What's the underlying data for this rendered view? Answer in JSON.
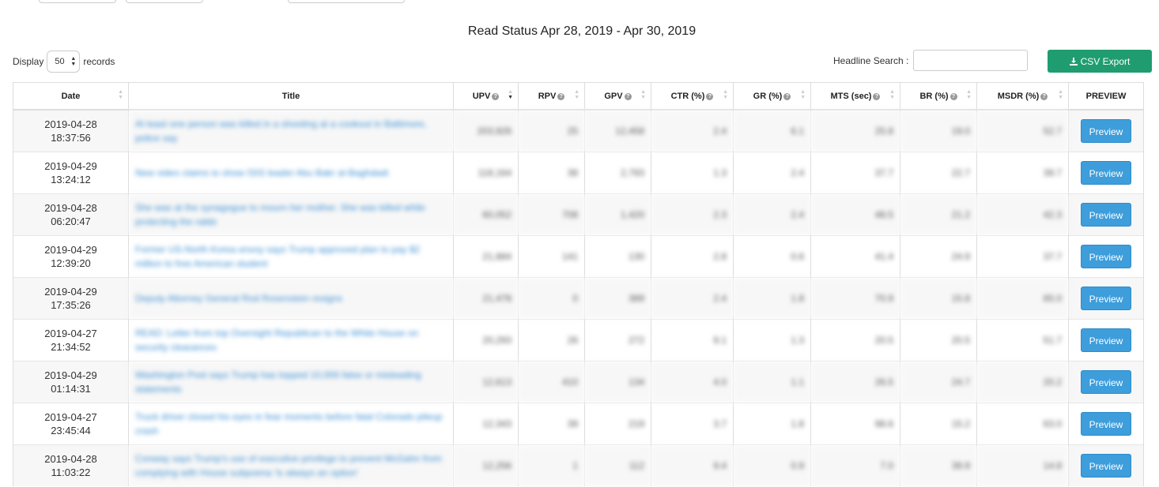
{
  "page_title": "Read Status Apr 28, 2019 - Apr 30, 2019",
  "display": {
    "prefix": "Display",
    "value": "50",
    "suffix": "records"
  },
  "search": {
    "label": "Headline Search :",
    "value": "",
    "placeholder": ""
  },
  "export_label": "CSV Export",
  "columns": [
    "Date",
    "Title",
    "UPV",
    "RPV",
    "GPV",
    "CTR (%)",
    "GR (%)",
    "MTS (sec)",
    "BR (%)",
    "MSDR (%)",
    "PREVIEW"
  ],
  "rows": [
    {
      "date": "2019-04-28",
      "time": "18:37:56",
      "title": "At least one person was killed in a shooting at a cookout in Baltimore, police say",
      "upv": "203,926",
      "rpv": "25",
      "gpv": "12,458",
      "ctr": "2.4",
      "gr": "6.1",
      "mts": "25.8",
      "br": "19.0",
      "msdr": "52.7",
      "preview": "Preview"
    },
    {
      "date": "2019-04-29",
      "time": "13:24:12",
      "title": "New video claims to show ISIS leader Abu Bakr al-Baghdadi",
      "upv": "118,164",
      "rpv": "38",
      "gpv": "2,793",
      "ctr": "1.3",
      "gr": "2.4",
      "mts": "37.7",
      "br": "22.7",
      "msdr": "39.7",
      "preview": "Preview"
    },
    {
      "date": "2019-04-28",
      "time": "06:20:47",
      "title": "She was at the synagogue to mourn her mother. She was killed while protecting the rabbi",
      "upv": "60,052",
      "rpv": "708",
      "gpv": "1,420",
      "ctr": "2.3",
      "gr": "2.4",
      "mts": "48.5",
      "br": "21.2",
      "msdr": "42.3",
      "preview": "Preview"
    },
    {
      "date": "2019-04-29",
      "time": "12:39:20",
      "title": "Former US-North Korea envoy says Trump approved plan to pay $2 million to free American student",
      "upv": "21,884",
      "rpv": "141",
      "gpv": "130",
      "ctr": "2.8",
      "gr": "0.6",
      "mts": "41.4",
      "br": "24.9",
      "msdr": "37.7",
      "preview": "Preview"
    },
    {
      "date": "2019-04-29",
      "time": "17:35:26",
      "title": "Deputy Attorney General Rod Rosenstein resigns",
      "upv": "21,478",
      "rpv": "0",
      "gpv": "389",
      "ctr": "2.4",
      "gr": "1.8",
      "mts": "70.9",
      "br": "15.8",
      "msdr": "65.0",
      "preview": "Preview"
    },
    {
      "date": "2019-04-27",
      "time": "21:34:52",
      "title": "READ: Letter from top Oversight Republican to the White House on security clearances",
      "upv": "20,293",
      "rpv": "26",
      "gpv": "272",
      "ctr": "9.1",
      "gr": "1.3",
      "mts": "20.5",
      "br": "20.5",
      "msdr": "51.7",
      "preview": "Preview"
    },
    {
      "date": "2019-04-29",
      "time": "01:14:31",
      "title": "Washington Post says Trump has topped 10,000 false or misleading statements",
      "upv": "12,613",
      "rpv": "410",
      "gpv": "134",
      "ctr": "4.0",
      "gr": "1.1",
      "mts": "26.5",
      "br": "24.7",
      "msdr": "20.2",
      "preview": "Preview"
    },
    {
      "date": "2019-04-27",
      "time": "23:45:44",
      "title": "Truck driver closed his eyes in fear moments before fatal Colorado pileup crash",
      "upv": "12,343",
      "rpv": "39",
      "gpv": "219",
      "ctr": "3.7",
      "gr": "1.8",
      "mts": "98.6",
      "br": "15.2",
      "msdr": "63.0",
      "preview": "Preview"
    },
    {
      "date": "2019-04-28",
      "time": "11:03:22",
      "title": "Conway says Trump's use of executive privilege to prevent McGahn from complying with House subpoena 'is always an option'",
      "upv": "12,256",
      "rpv": "1",
      "gpv": "112",
      "ctr": "9.4",
      "gr": "0.9",
      "mts": "7.0",
      "br": "39.9",
      "msdr": "14.8",
      "preview": "Preview"
    }
  ]
}
